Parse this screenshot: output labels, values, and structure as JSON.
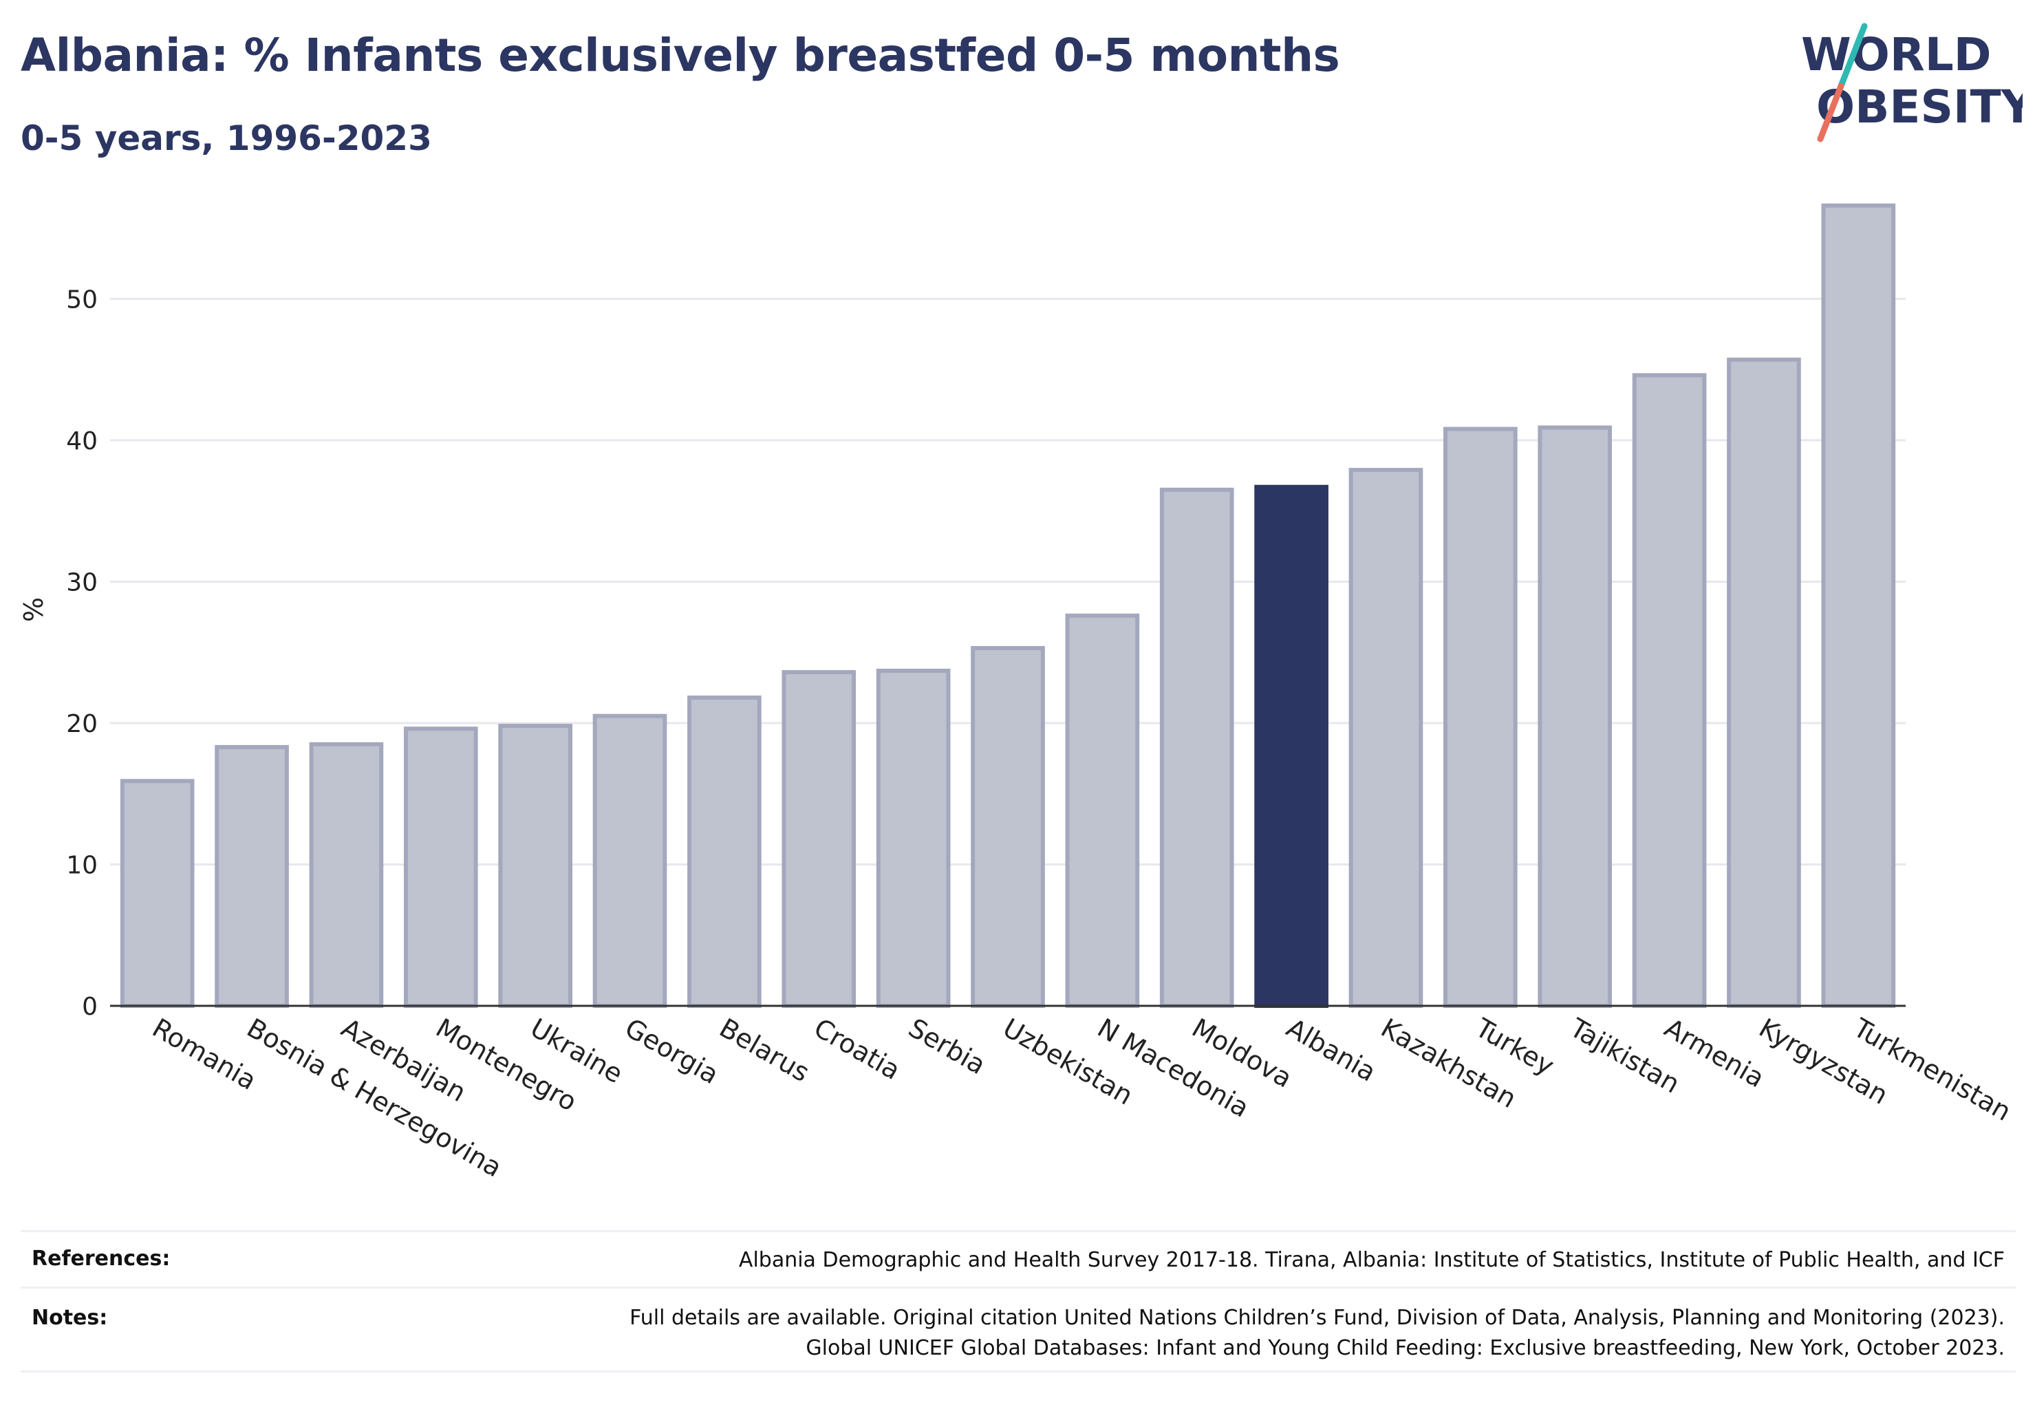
{
  "header": {
    "title": "Albania: % Infants exclusively breastfed 0-5 months",
    "subtitle": "0-5 years, 1996-2023"
  },
  "logo": {
    "line1": "WORLD",
    "line2": "OBESITY",
    "text_color": "#2c3662",
    "slash_colors": [
      "#2fb9b3",
      "#e8705e"
    ]
  },
  "chart_data": {
    "type": "bar",
    "ylabel": "%",
    "xlabel": "",
    "ylim": [
      0,
      58
    ],
    "yticks": [
      0,
      10,
      20,
      30,
      40,
      50
    ],
    "grid": true,
    "categories": [
      "Romania",
      "Bosnia & Herzegovina",
      "Azerbaijan",
      "Montenegro",
      "Ukraine",
      "Georgia",
      "Belarus",
      "Croatia",
      "Serbia",
      "Uzbekistan",
      "N Macedonia",
      "Moldova",
      "Albania",
      "Kazakhstan",
      "Turkey",
      "Tajikistan",
      "Armenia",
      "Kyrgyzstan",
      "Turkmenistan"
    ],
    "values": [
      15.9,
      18.3,
      18.5,
      19.6,
      19.8,
      20.5,
      21.8,
      23.6,
      23.7,
      25.3,
      27.6,
      36.5,
      36.7,
      37.9,
      40.8,
      40.9,
      44.6,
      45.7,
      56.6
    ],
    "highlight": "Albania",
    "colors": {
      "bar": "#bfc2cf",
      "bar_stroke": "#a3a8bd",
      "highlight": "#2c3662",
      "grid": "#e6e8ee",
      "axis": "#333333"
    }
  },
  "footer": {
    "references_label": "References:",
    "references_text": "Albania Demographic and Health Survey 2017-18. Tirana, Albania: Institute of Statistics, Institute of Public Health, and ICF",
    "notes_label": "Notes:",
    "notes_line1": "Full details are available. Original citation United Nations Children’s Fund, Division of Data, Analysis, Planning and Monitoring (2023).",
    "notes_line2": "Global UNICEF Global Databases: Infant and Young Child Feeding: Exclusive breastfeeding, New York, October 2023."
  }
}
